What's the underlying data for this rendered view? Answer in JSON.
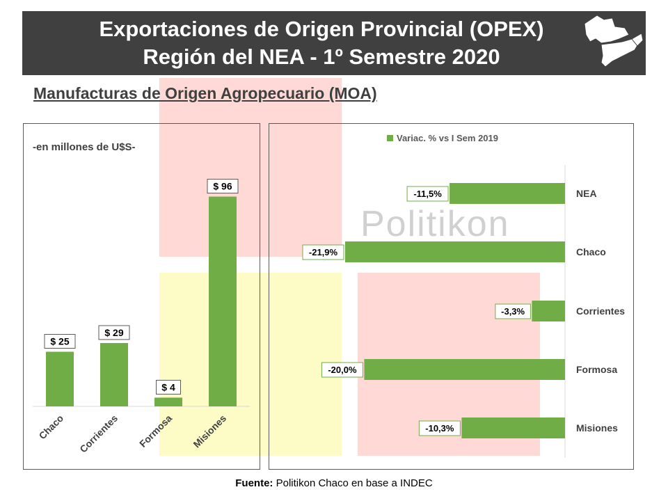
{
  "header": {
    "title_line1": "Exportaciones de Origen Provincial (OPEX)",
    "title_line2": "Región del NEA - 1º Semestre 2020"
  },
  "subtitle": "Manufacturas de Origen Agropecuario (MOA)",
  "watermark": "Politikon",
  "source": {
    "label": "Fuente:",
    "text": "Politikon Chaco en base a INDEC"
  },
  "colors": {
    "bar": "#70ad47",
    "header_bg": "#404040"
  },
  "chart_data": [
    {
      "type": "bar",
      "subtitle": "-en millones de U$S-",
      "categories": [
        "Chaco",
        "Corrientes",
        "Formosa",
        "Misiones"
      ],
      "values": [
        25,
        29,
        4,
        96
      ],
      "data_labels": [
        "$ 25",
        "$ 29",
        "$ 4",
        "$ 96"
      ],
      "ylim": [
        0,
        100
      ],
      "grid": false
    },
    {
      "type": "bar",
      "orientation": "horizontal",
      "categories": [
        "NEA",
        "Chaco",
        "Corrientes",
        "Formosa",
        "Misiones"
      ],
      "series": [
        {
          "name": "Variac. % vs I Sem 2019",
          "values": [
            -11.5,
            -21.9,
            -3.3,
            -20.0,
            -10.3
          ]
        }
      ],
      "data_labels": [
        "-11,5%",
        "-21,9%",
        "-3,3%",
        "-20,0%",
        "-10,3%"
      ],
      "xlim": [
        -25,
        0
      ],
      "legend": "top",
      "grid": false
    }
  ]
}
